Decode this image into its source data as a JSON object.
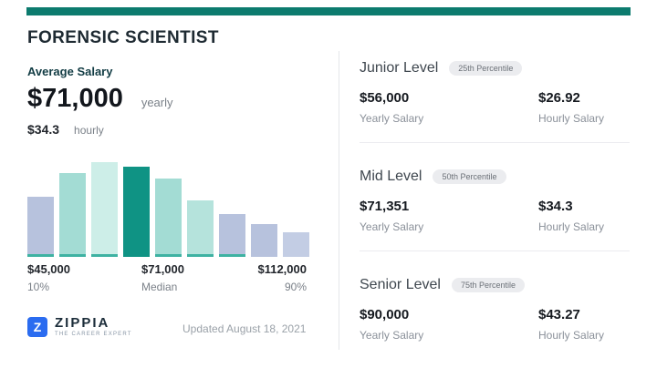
{
  "header": {
    "title": "FORENSIC SCIENTIST"
  },
  "average": {
    "label": "Average Salary",
    "yearly_value": "$71,000",
    "yearly_unit": "yearly",
    "hourly_value": "$34.3",
    "hourly_unit": "hourly"
  },
  "chart_data": {
    "type": "bar",
    "title": "Forensic Scientist salary distribution",
    "x_axis": {
      "left": {
        "value": "$45,000",
        "label": "10%"
      },
      "middle": {
        "value": "$71,000",
        "label": "Median"
      },
      "right": {
        "value": "$112,000",
        "label": "90%"
      }
    },
    "bars": [
      {
        "height": 66,
        "color": "#b7c2dd",
        "baseline": true,
        "highlight": false
      },
      {
        "height": 92,
        "color": "#a3dcd4",
        "baseline": true,
        "highlight": false
      },
      {
        "height": 104,
        "color": "#cdeee8",
        "baseline": true,
        "highlight": false
      },
      {
        "height": 99,
        "color": "#0f9384",
        "baseline": false,
        "highlight": true
      },
      {
        "height": 86,
        "color": "#a3dcd4",
        "baseline": true,
        "highlight": false
      },
      {
        "height": 62,
        "color": "#b5e3dc",
        "baseline": true,
        "highlight": false
      },
      {
        "height": 47,
        "color": "#b7c2dd",
        "baseline": true,
        "highlight": false
      },
      {
        "height": 36,
        "color": "#b7c2dd",
        "baseline": false,
        "highlight": false
      },
      {
        "height": 27,
        "color": "#c3cde4",
        "baseline": false,
        "highlight": false
      }
    ],
    "baseline_color": "#3eb2a2",
    "ylim": [
      0,
      110
    ]
  },
  "levels": [
    {
      "name": "Junior Level",
      "badge": "25th Percentile",
      "yearly_value": "$56,000",
      "yearly_label": "Yearly Salary",
      "hourly_value": "$26.92",
      "hourly_label": "Hourly Salary"
    },
    {
      "name": "Mid Level",
      "badge": "50th Percentile",
      "yearly_value": "$71,351",
      "yearly_label": "Yearly Salary",
      "hourly_value": "$34.3",
      "hourly_label": "Hourly Salary"
    },
    {
      "name": "Senior Level",
      "badge": "75th Percentile",
      "yearly_value": "$90,000",
      "yearly_label": "Yearly Salary",
      "hourly_value": "$43.27",
      "hourly_label": "Hourly Salary"
    }
  ],
  "footer": {
    "brand": "ZIPPIA",
    "brand_mark": "Z",
    "tagline": "THE CAREER EXPERT",
    "updated": "Updated August 18, 2021"
  },
  "colors": {
    "top_bar": "#0c7b6e",
    "highlight_teal": "#0f9384",
    "light_teal": "#a3dcd4",
    "lavender": "#b7c2dd",
    "brand_blue": "#2b6cf0"
  }
}
